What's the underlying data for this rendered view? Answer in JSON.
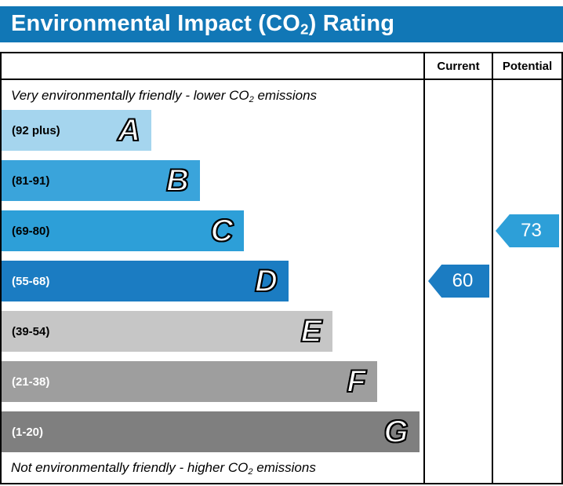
{
  "title": {
    "prefix": "Environmental Impact (CO",
    "sub": "2",
    "suffix": ") Rating"
  },
  "header_color": "#1177b6",
  "columns": {
    "current": "Current",
    "potential": "Potential"
  },
  "notes": {
    "top": {
      "prefix": "Very environmentally friendly - lower CO",
      "sub": "2",
      "suffix": " emissions"
    },
    "bottom": {
      "prefix": "Not environmentally friendly - higher CO",
      "sub": "2",
      "suffix": " emissions"
    }
  },
  "chart_data": {
    "type": "bar",
    "title": "Environmental Impact (CO2) Rating",
    "legend_position": "none",
    "grid": false,
    "bands": [
      {
        "letter": "A",
        "range": "(92 plus)",
        "color": "#a5d5ee",
        "text_color": "#000000",
        "width_pct": 35.5
      },
      {
        "letter": "B",
        "range": "(81-91)",
        "color": "#3aa4db",
        "text_color": "#000000",
        "width_pct": 47
      },
      {
        "letter": "C",
        "range": "(69-80)",
        "color": "#2d9fd8",
        "text_color": "#000000",
        "width_pct": 57.5
      },
      {
        "letter": "D",
        "range": "(55-68)",
        "color": "#1b7cc2",
        "text_color": "#ffffff",
        "width_pct": 68
      },
      {
        "letter": "E",
        "range": "(39-54)",
        "color": "#c6c6c6",
        "text_color": "#000000",
        "width_pct": 78.5
      },
      {
        "letter": "F",
        "range": "(21-38)",
        "color": "#9e9e9e",
        "text_color": "#ffffff",
        "width_pct": 89
      },
      {
        "letter": "G",
        "range": "(1-20)",
        "color": "#7f7f7f",
        "text_color": "#ffffff",
        "width_pct": 99
      }
    ],
    "markers": {
      "current": {
        "value": "60",
        "band": "D",
        "color": "#1b7cc2"
      },
      "potential": {
        "value": "73",
        "band": "C",
        "color": "#2d9fd8"
      }
    }
  }
}
